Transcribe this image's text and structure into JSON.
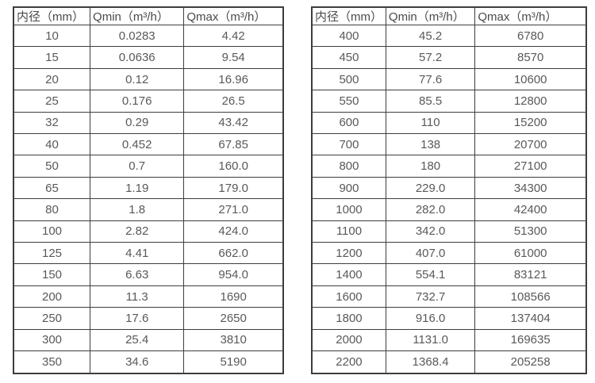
{
  "page": {
    "background": "#ffffff",
    "border_color": "#3d3d3d",
    "text_color": "#595959"
  },
  "tables": [
    {
      "name": "flow-rate-table-small-diameters",
      "headers": [
        "内径（mm）",
        "Qmin（m³/h）",
        "Qmax（m³/h）"
      ],
      "rows": [
        [
          "10",
          "0.0283",
          "4.42"
        ],
        [
          "15",
          "0.0636",
          "9.54"
        ],
        [
          "20",
          "0.12",
          "16.96"
        ],
        [
          "25",
          "0.176",
          "26.5"
        ],
        [
          "32",
          "0.29",
          "43.42"
        ],
        [
          "40",
          "0.452",
          "67.85"
        ],
        [
          "50",
          "0.7",
          "160.0"
        ],
        [
          "65",
          "1.19",
          "179.0"
        ],
        [
          "80",
          "1.8",
          "271.0"
        ],
        [
          "100",
          "2.82",
          "424.0"
        ],
        [
          "125",
          "4.41",
          "662.0"
        ],
        [
          "150",
          "6.63",
          "954.0"
        ],
        [
          "200",
          "11.3",
          "1690"
        ],
        [
          "250",
          "17.6",
          "2650"
        ],
        [
          "300",
          "25.4",
          "3810"
        ],
        [
          "350",
          "34.6",
          "5190"
        ]
      ]
    },
    {
      "name": "flow-rate-table-large-diameters",
      "headers": [
        "内径（mm）",
        "Qmin（m³/h）",
        "Qmax（m³/h）"
      ],
      "rows": [
        [
          "400",
          "45.2",
          "6780"
        ],
        [
          "450",
          "57.2",
          "8570"
        ],
        [
          "500",
          "77.6",
          "10600"
        ],
        [
          "550",
          "85.5",
          "12800"
        ],
        [
          "600",
          "110",
          "15200"
        ],
        [
          "700",
          "138",
          "20700"
        ],
        [
          "800",
          "180",
          "27100"
        ],
        [
          "900",
          "229.0",
          "34300"
        ],
        [
          "1000",
          "282.0",
          "42400"
        ],
        [
          "1100",
          "342.0",
          "51300"
        ],
        [
          "1200",
          "407.0",
          "61000"
        ],
        [
          "1400",
          "554.1",
          "83121"
        ],
        [
          "1600",
          "732.7",
          "108566"
        ],
        [
          "1800",
          "916.0",
          "137404"
        ],
        [
          "2000",
          "1131.0",
          "169635"
        ],
        [
          "2200",
          "1368.4",
          "205258"
        ]
      ]
    }
  ]
}
